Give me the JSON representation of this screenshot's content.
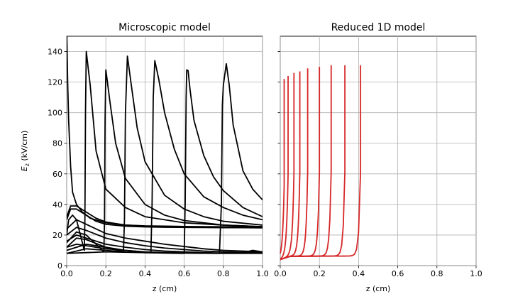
{
  "chart_data": [
    {
      "type": "line",
      "title": "Microscopic model",
      "xlabel": "z (cm)",
      "ylabel_main": "E",
      "ylabel_sub": "z",
      "ylabel_rest": " (kV/cm)",
      "xlim": [
        0,
        1.0
      ],
      "ylim": [
        0,
        150
      ],
      "xticks": [
        "0.0",
        "0.2",
        "0.4",
        "0.6",
        "0.8",
        "1.0"
      ],
      "yticks": [
        "0",
        "20",
        "40",
        "60",
        "80",
        "100",
        "120",
        "140"
      ],
      "grid": true,
      "color": "#000000",
      "series": [
        {
          "x": [
            0.0,
            0.005,
            0.01,
            0.02,
            0.03,
            0.05,
            0.08,
            0.12,
            0.2,
            0.3,
            0.4,
            0.5,
            0.6,
            0.7,
            0.8,
            0.9,
            1.0
          ],
          "y": [
            155,
            120,
            95,
            65,
            48,
            40,
            35,
            31,
            28,
            26.5,
            26,
            25.8,
            25.6,
            25.5,
            25.4,
            25.3,
            25.2
          ]
        },
        {
          "x": [
            0.0,
            0.01,
            0.03,
            0.05,
            0.07,
            0.09,
            0.093,
            0.096,
            0.1,
            0.12,
            0.15,
            0.2,
            0.3,
            0.4,
            0.6,
            0.8,
            1.0
          ],
          "y": [
            20,
            30,
            33,
            30,
            20,
            10,
            30,
            100,
            140,
            118,
            75,
            50,
            38,
            32,
            28,
            26.5,
            25.5
          ]
        },
        {
          "x": [
            0.0,
            0.05,
            0.1,
            0.15,
            0.19,
            0.193,
            0.196,
            0.2,
            0.22,
            0.25,
            0.3,
            0.4,
            0.5,
            0.6,
            0.8,
            1.0
          ],
          "y": [
            15,
            22,
            20,
            14,
            9,
            30,
            95,
            128,
            108,
            80,
            57,
            40,
            33,
            29.5,
            26.5,
            25.5
          ]
        },
        {
          "x": [
            0.0,
            0.05,
            0.1,
            0.2,
            0.29,
            0.295,
            0.3,
            0.31,
            0.33,
            0.36,
            0.4,
            0.5,
            0.6,
            0.7,
            0.8,
            1.0
          ],
          "y": [
            12,
            18,
            17,
            12,
            9,
            30,
            100,
            137,
            118,
            90,
            68,
            46,
            37,
            32,
            29,
            26.5
          ]
        },
        {
          "x": [
            0.0,
            0.1,
            0.2,
            0.3,
            0.43,
            0.436,
            0.442,
            0.45,
            0.47,
            0.5,
            0.55,
            0.6,
            0.7,
            0.8,
            0.9,
            1.0
          ],
          "y": [
            10,
            14,
            12,
            10,
            8.5,
            40,
            110,
            134,
            122,
            100,
            76,
            60,
            45,
            38,
            33,
            30
          ]
        },
        {
          "x": [
            0.0,
            0.1,
            0.2,
            0.3,
            0.4,
            0.5,
            0.6,
            0.605,
            0.61,
            0.613,
            0.62,
            0.63,
            0.65,
            0.7,
            0.75,
            0.8,
            0.9,
            1.0
          ],
          "y": [
            8,
            11,
            10,
            9,
            8.5,
            8.2,
            8,
            40,
            110,
            128,
            127.5,
            115,
            95,
            72,
            58,
            49,
            38,
            32
          ]
        },
        {
          "x": [
            0.0,
            0.2,
            0.4,
            0.6,
            0.78,
            0.79,
            0.795,
            0.8,
            0.815,
            0.83,
            0.85,
            0.9,
            0.95,
            1.0
          ],
          "y": [
            8,
            9,
            8.5,
            8.2,
            8,
            40,
            105,
            118,
            132,
            118,
            92,
            62,
            50,
            43
          ]
        },
        {
          "x": [
            0.0,
            0.02,
            0.05,
            0.1,
            0.15,
            0.2,
            0.3,
            0.4,
            0.5,
            0.6,
            0.7,
            0.8,
            0.9,
            1.0
          ],
          "y": [
            32,
            39,
            39,
            35,
            31,
            28.5,
            26.5,
            25.8,
            25.5,
            25.3,
            25.2,
            25.1,
            25,
            25
          ]
        },
        {
          "x": [
            0.0,
            0.02,
            0.05,
            0.1,
            0.15,
            0.2,
            0.3,
            0.4,
            0.5,
            0.6,
            0.7,
            0.8,
            0.9,
            1.0
          ],
          "y": [
            30,
            37,
            37,
            33,
            29,
            27,
            25.8,
            25.3,
            25.1,
            25,
            24.9,
            24.8,
            24.8,
            24.7
          ]
        },
        {
          "x": [
            0.0,
            0.05,
            0.1,
            0.2,
            0.3,
            0.4,
            0.5,
            0.6,
            0.7,
            0.8,
            0.9,
            1.0
          ],
          "y": [
            24,
            30,
            27,
            21,
            18,
            16,
            14,
            12.5,
            11,
            10,
            9.5,
            9
          ]
        },
        {
          "x": [
            0.0,
            0.05,
            0.1,
            0.2,
            0.3,
            0.4,
            0.5,
            0.6,
            0.7,
            0.8,
            0.9,
            1.0
          ],
          "y": [
            20,
            25,
            23,
            18,
            15,
            13,
            11.5,
            10.5,
            9.5,
            9,
            8.7,
            8.5
          ]
        },
        {
          "x": [
            0.0,
            0.05,
            0.1,
            0.2,
            0.3,
            0.4,
            0.5,
            0.6,
            0.7,
            0.8,
            0.9,
            0.95,
            1.0
          ],
          "y": [
            16,
            20,
            18,
            14,
            12,
            10.5,
            9.5,
            9,
            8.5,
            8.2,
            8.5,
            10,
            9
          ]
        },
        {
          "x": [
            0.0,
            0.05,
            0.1,
            0.2,
            0.3,
            0.4,
            0.5,
            0.6,
            0.7,
            0.8,
            0.9,
            1.0
          ],
          "y": [
            12,
            14,
            13,
            11,
            10,
            9,
            8.6,
            8.3,
            8.1,
            8,
            8,
            8
          ]
        }
      ]
    },
    {
      "type": "line",
      "title": "Reduced 1D model",
      "xlabel": "z (cm)",
      "xlim": [
        0,
        1.0
      ],
      "ylim": [
        0,
        150
      ],
      "xticks": [
        "0.0",
        "0.2",
        "0.4",
        "0.6",
        "0.8",
        "1.0"
      ],
      "grid": true,
      "color": "#d62728",
      "front_positions": [
        0.02,
        0.04,
        0.07,
        0.1,
        0.14,
        0.2,
        0.26,
        0.33,
        0.41
      ],
      "peak_values": [
        122,
        124,
        126,
        127,
        129,
        130,
        131,
        131,
        131
      ]
    }
  ]
}
